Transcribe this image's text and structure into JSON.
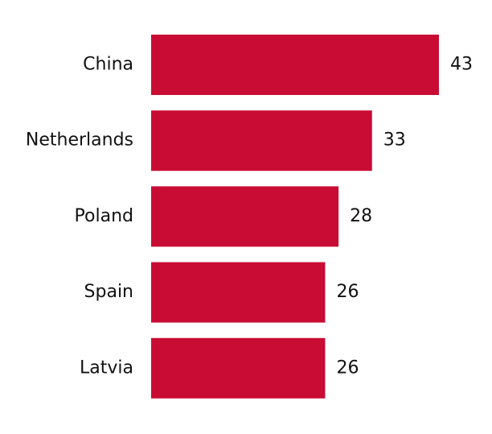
{
  "chart_data": {
    "type": "bar",
    "categories": [
      "China",
      "Netherlands",
      "Poland",
      "Spain",
      "Latvia"
    ],
    "values": [
      43,
      33,
      28,
      26,
      26
    ],
    "color": "#c90c33"
  }
}
